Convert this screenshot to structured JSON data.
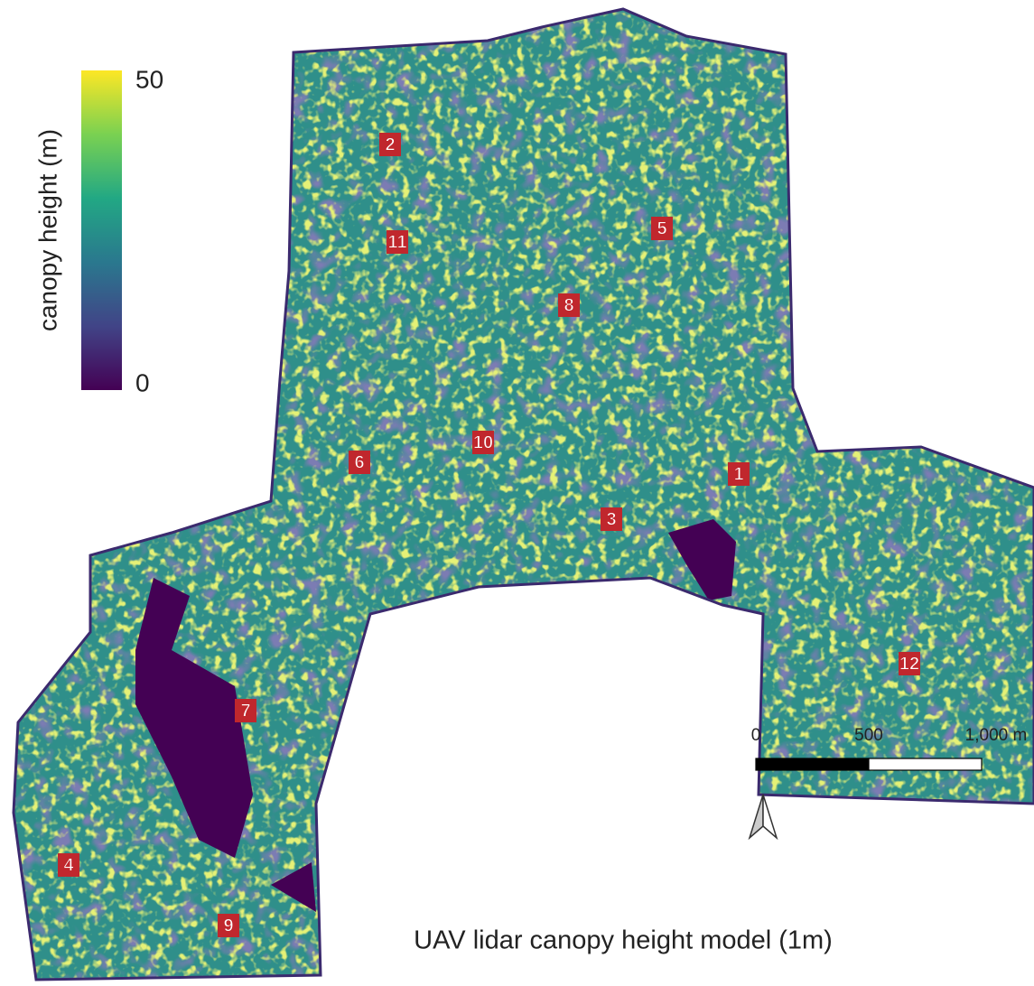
{
  "colorbar": {
    "label": "canopy height (m)",
    "ylim": [
      0,
      50
    ],
    "yticks": [
      0,
      50
    ]
  },
  "plots": [
    {
      "label": "1"
    },
    {
      "label": "2"
    },
    {
      "label": "3"
    },
    {
      "label": "4"
    },
    {
      "label": "5"
    },
    {
      "label": "6"
    },
    {
      "label": "7"
    },
    {
      "label": "8"
    },
    {
      "label": "9"
    },
    {
      "label": "10"
    },
    {
      "label": "11"
    },
    {
      "label": "12"
    }
  ],
  "scale_bar": {
    "ticks": [
      0,
      500,
      {
        "value": 1000,
        "label": "1,000 m"
      }
    ]
  },
  "caption": "UAV lidar canopy height model (1m)"
}
